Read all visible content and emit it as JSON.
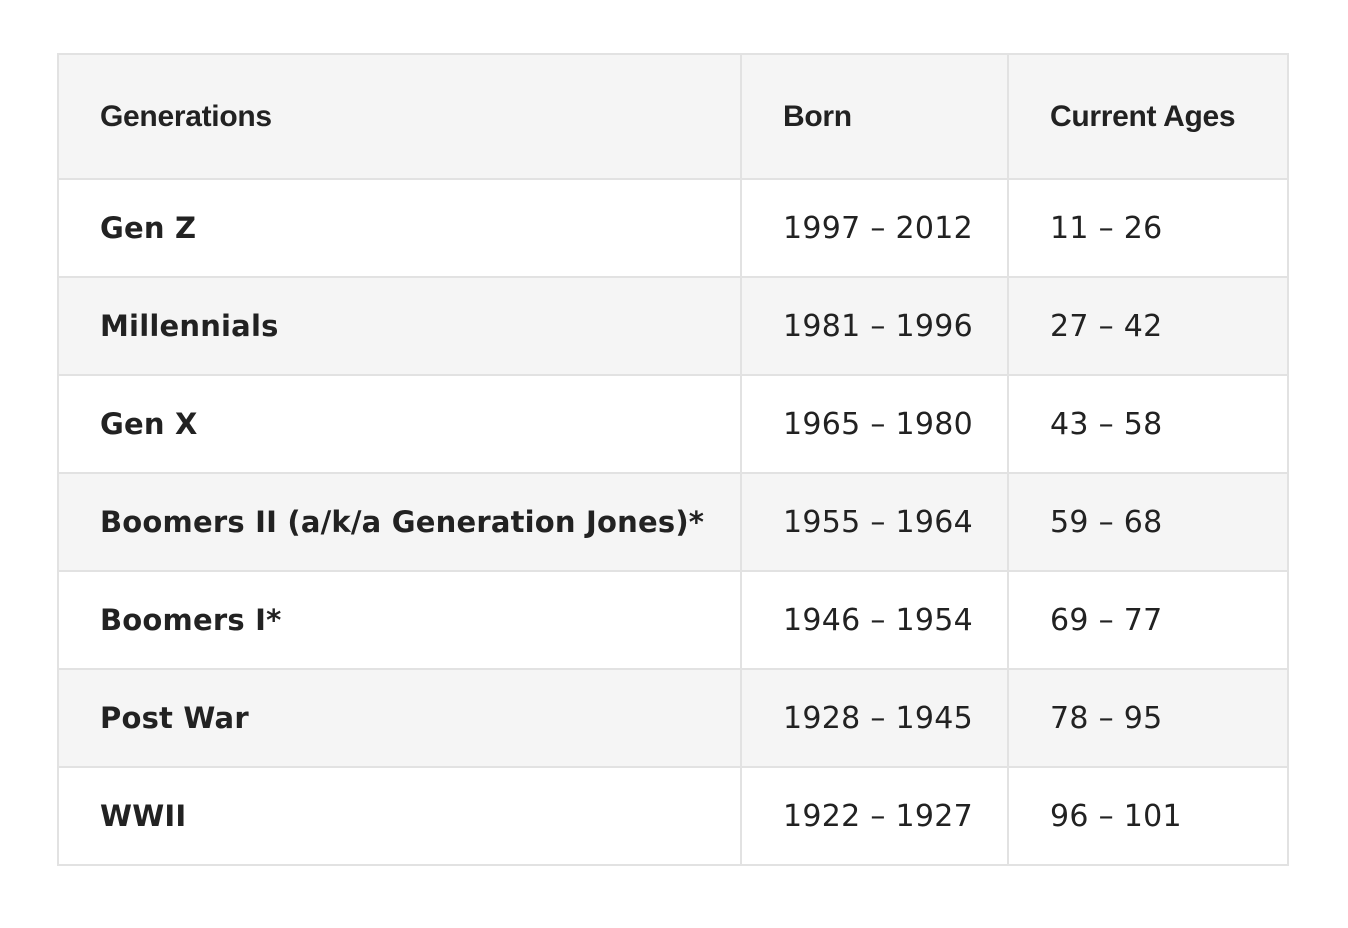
{
  "table": {
    "headers": [
      "Generations",
      "Born",
      "Current Ages"
    ],
    "rows": [
      {
        "generation": "Gen Z",
        "born": "1997 – 2012",
        "ages": "11 – 26"
      },
      {
        "generation": "Millennials",
        "born": "1981 – 1996",
        "ages": "27 – 42"
      },
      {
        "generation": "Gen X",
        "born": "1965 – 1980",
        "ages": "43 – 58"
      },
      {
        "generation": "Boomers II (a/k/a Generation Jones)*",
        "born": "1955 – 1964",
        "ages": "59 – 68"
      },
      {
        "generation": "Boomers I*",
        "born": "1946 – 1954",
        "ages": "69 – 77"
      },
      {
        "generation": "Post War",
        "born": "1928 – 1945",
        "ages": "78 – 95"
      },
      {
        "generation": "WWII",
        "born": "1922 – 1927",
        "ages": "96 – 101"
      }
    ]
  },
  "colors": {
    "header_bg": "#f5f5f5",
    "stripe_bg": "#f5f5f5",
    "border": "#e2e2e2",
    "text": "#222222"
  }
}
